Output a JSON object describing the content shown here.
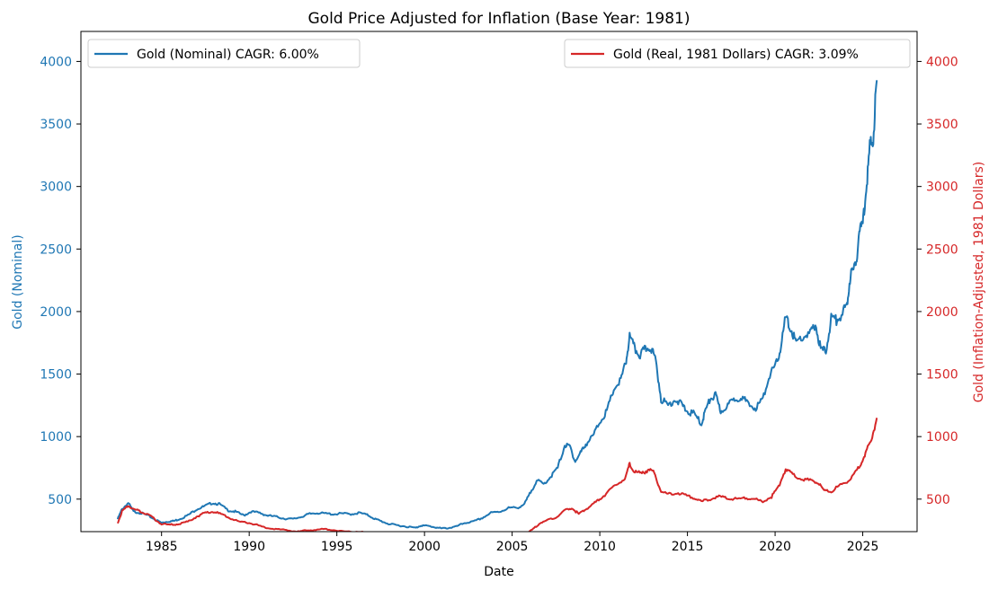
{
  "chart_data": {
    "type": "line",
    "title": "Gold Price Adjusted for Inflation (Base Year: 1981)",
    "xlabel": "Date",
    "ylabel_left": "Gold (Nominal)",
    "ylabel_right": "Gold (Inflation-Adjusted, 1981 Dollars)",
    "xlim": [
      1980.4,
      2028.1
    ],
    "ylim": [
      240,
      4240
    ],
    "x_ticks": [
      1985,
      1990,
      1995,
      2000,
      2005,
      2010,
      2015,
      2020,
      2025
    ],
    "y_ticks": [
      500,
      1000,
      1500,
      2000,
      2500,
      3000,
      3500,
      4000
    ],
    "grid": false,
    "legend_left": "Gold (Nominal) CAGR: 6.00%",
    "legend_right": "Gold (Real, 1981 Dollars) CAGR: 3.09%",
    "colors": {
      "nominal": "#1f77b4",
      "real": "#d62728",
      "axis": "#000000"
    },
    "series": [
      {
        "key": "nominal",
        "axis": "left",
        "x": [
          1982.5,
          1982.75,
          1983.1,
          1983.4,
          1983.8,
          1984.2,
          1984.6,
          1985.0,
          1985.3,
          1985.7,
          1986.0,
          1986.5,
          1987.0,
          1987.4,
          1987.9,
          1988.3,
          1988.8,
          1989.2,
          1989.7,
          1990.1,
          1990.6,
          1991.0,
          1991.5,
          1992.0,
          1992.5,
          1993.0,
          1993.4,
          1993.8,
          1994.3,
          1994.8,
          1995.3,
          1995.8,
          1996.3,
          1996.8,
          1997.2,
          1997.6,
          1998.0,
          1998.5,
          1999.0,
          1999.5,
          1999.8,
          2000.2,
          2000.6,
          2001.0,
          2001.4,
          2001.8,
          2002.3,
          2002.8,
          2003.3,
          2003.8,
          2004.3,
          2004.8,
          2005.3,
          2005.7,
          2006.0,
          2006.4,
          2006.8,
          2007.2,
          2007.6,
          2008.0,
          2008.3,
          2008.6,
          2008.9,
          2009.2,
          2009.6,
          2010.0,
          2010.4,
          2010.8,
          2011.2,
          2011.5,
          2011.7,
          2012.0,
          2012.3,
          2012.6,
          2012.9,
          2013.2,
          2013.5,
          2013.9,
          2014.3,
          2014.7,
          2015.0,
          2015.4,
          2015.8,
          2016.0,
          2016.3,
          2016.6,
          2016.9,
          2017.3,
          2017.7,
          2018.1,
          2018.5,
          2018.9,
          2019.3,
          2019.7,
          2020.0,
          2020.3,
          2020.6,
          2020.9,
          2021.2,
          2021.6,
          2022.0,
          2022.3,
          2022.6,
          2022.9,
          2023.2,
          2023.5,
          2023.9,
          2024.1,
          2024.3,
          2024.6,
          2024.8,
          2025.0,
          2025.2,
          2025.4,
          2025.6,
          2025.8
        ],
        "values": [
          340,
          420,
          470,
          400,
          390,
          370,
          340,
          310,
          320,
          325,
          340,
          370,
          420,
          440,
          470,
          460,
          410,
          400,
          370,
          400,
          390,
          370,
          360,
          345,
          340,
          360,
          380,
          390,
          385,
          380,
          385,
          380,
          390,
          370,
          340,
          320,
          300,
          290,
          280,
          270,
          290,
          285,
          275,
          265,
          270,
          280,
          310,
          320,
          350,
          390,
          400,
          430,
          430,
          460,
          540,
          650,
          620,
          680,
          750,
          930,
          920,
          800,
          870,
          940,
          1000,
          1120,
          1200,
          1380,
          1450,
          1600,
          1800,
          1700,
          1650,
          1700,
          1720,
          1600,
          1300,
          1250,
          1300,
          1250,
          1200,
          1180,
          1100,
          1200,
          1300,
          1330,
          1200,
          1250,
          1300,
          1320,
          1250,
          1230,
          1300,
          1500,
          1550,
          1700,
          1950,
          1860,
          1750,
          1800,
          1820,
          1900,
          1700,
          1680,
          1950,
          1930,
          2000,
          2050,
          2300,
          2350,
          2650,
          2700,
          3000,
          3300,
          3400,
          3850
        ]
      },
      {
        "key": "real",
        "axis": "right",
        "x": [
          1982.5,
          1982.75,
          1983.1,
          1983.4,
          1983.8,
          1984.2,
          1984.6,
          1985.0,
          1985.5,
          1986.0,
          1986.5,
          1987.0,
          1987.5,
          1987.9,
          1988.4,
          1988.9,
          1989.4,
          1990.0,
          1990.5,
          1991.0,
          1991.6,
          1992.2,
          1992.8,
          1993.3,
          1993.8,
          1994.4,
          1995.0,
          1995.6,
          1996.2,
          1996.8,
          1997.3,
          1997.8,
          1998.3,
          1998.9,
          1999.5,
          2000.1,
          2000.7,
          2001.3,
          2001.9,
          2002.5,
          2003.1,
          2003.7,
          2004.3,
          2004.8,
          2005.3,
          2005.8,
          2006.2,
          2006.6,
          2007.0,
          2007.5,
          2008.0,
          2008.4,
          2008.8,
          2009.2,
          2009.6,
          2010.0,
          2010.5,
          2011.0,
          2011.5,
          2011.7,
          2012.0,
          2012.4,
          2012.8,
          2013.1,
          2013.5,
          2013.9,
          2014.4,
          2014.9,
          2015.4,
          2015.8,
          2016.3,
          2016.8,
          2017.3,
          2017.8,
          2018.3,
          2018.8,
          2019.3,
          2019.8,
          2020.2,
          2020.6,
          2021.0,
          2021.5,
          2022.0,
          2022.4,
          2022.8,
          2023.2,
          2023.7,
          2024.1,
          2024.5,
          2024.9,
          2025.2,
          2025.5,
          2025.8
        ],
        "values": [
          310,
          400,
          450,
          420,
          400,
          380,
          340,
          300,
          295,
          300,
          320,
          360,
          390,
          400,
          380,
          350,
          320,
          310,
          290,
          270,
          260,
          250,
          240,
          250,
          255,
          260,
          250,
          240,
          240,
          230,
          210,
          190,
          170,
          160,
          150,
          150,
          140,
          130,
          130,
          140,
          150,
          170,
          180,
          190,
          200,
          220,
          260,
          310,
          330,
          350,
          410,
          430,
          380,
          420,
          460,
          500,
          560,
          620,
          680,
          780,
          720,
          700,
          740,
          710,
          560,
          540,
          550,
          530,
          510,
          480,
          500,
          520,
          510,
          500,
          510,
          500,
          480,
          520,
          600,
          740,
          700,
          660,
          650,
          640,
          570,
          560,
          610,
          640,
          700,
          780,
          880,
          980,
          1150
        ]
      }
    ]
  }
}
